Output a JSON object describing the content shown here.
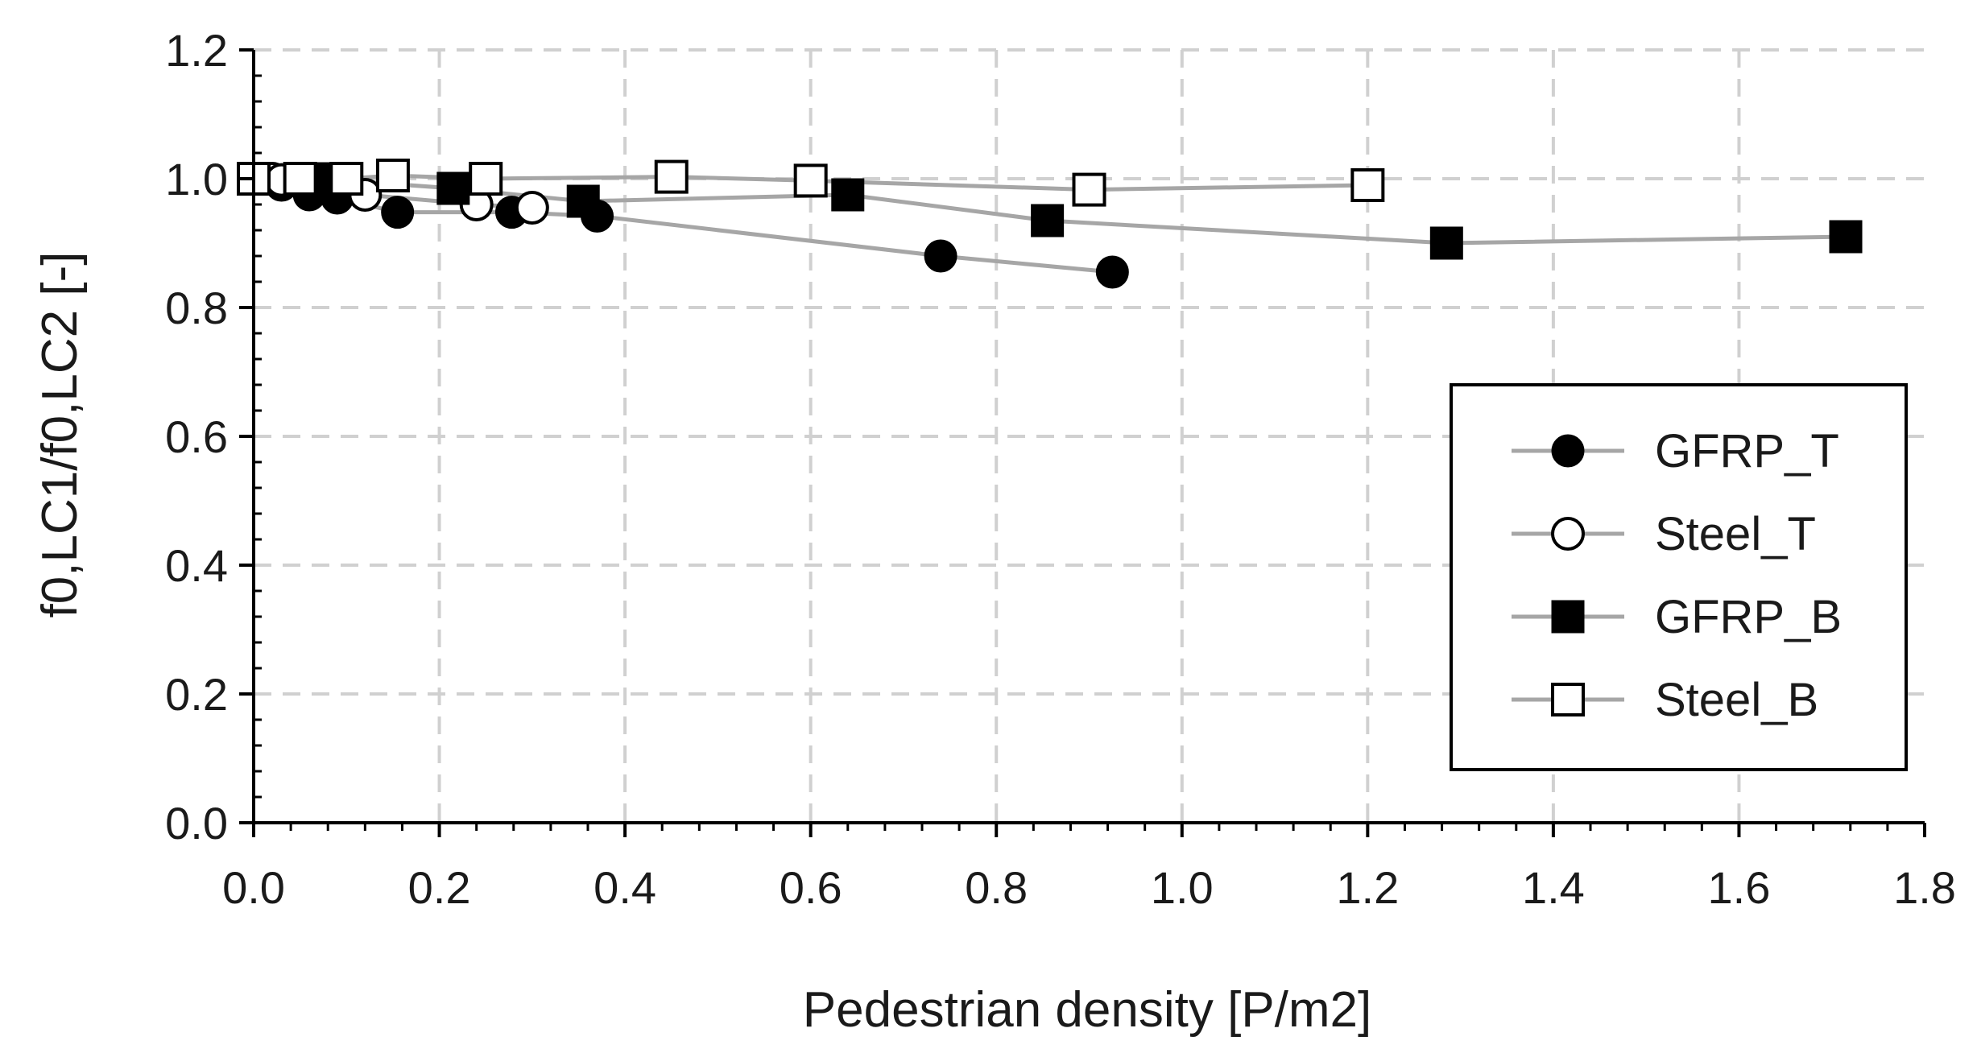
{
  "chart_data": {
    "type": "scatter",
    "title": "",
    "xlabel": "Pedestrian density [P/m2]",
    "ylabel": "f0,LC1/f0,LC2 [-]",
    "xlim": [
      0,
      1.8
    ],
    "ylim": [
      0,
      1.2
    ],
    "xticks": [
      "0.0",
      "0.2",
      "0.4",
      "0.6",
      "0.8",
      "1.0",
      "1.2",
      "1.4",
      "1.6",
      "1.8"
    ],
    "yticks": [
      "0.0",
      "0.2",
      "0.4",
      "0.6",
      "0.8",
      "1.0",
      "1.2"
    ],
    "grid": true,
    "legend_position": "lower-right",
    "series": [
      {
        "name": "GFRP_T",
        "marker": "filled-circle",
        "line_color": "#a6a6a6",
        "points": [
          {
            "x": 0.0,
            "y": 1.0
          },
          {
            "x": 0.03,
            "y": 0.99
          },
          {
            "x": 0.06,
            "y": 0.975
          },
          {
            "x": 0.09,
            "y": 0.97
          },
          {
            "x": 0.155,
            "y": 0.948
          },
          {
            "x": 0.278,
            "y": 0.948
          },
          {
            "x": 0.37,
            "y": 0.942
          },
          {
            "x": 0.74,
            "y": 0.88
          },
          {
            "x": 0.925,
            "y": 0.855
          }
        ]
      },
      {
        "name": "Steel_T",
        "marker": "open-circle",
        "line_color": "#a6a6a6",
        "points": [
          {
            "x": 0.0,
            "y": 1.0
          },
          {
            "x": 0.01,
            "y": 1.0
          },
          {
            "x": 0.02,
            "y": 1.0
          },
          {
            "x": 0.03,
            "y": 0.998
          },
          {
            "x": 0.12,
            "y": 0.975
          },
          {
            "x": 0.24,
            "y": 0.96
          },
          {
            "x": 0.3,
            "y": 0.955
          }
        ]
      },
      {
        "name": "GFRP_B",
        "marker": "filled-square",
        "line_color": "#a6a6a6",
        "points": [
          {
            "x": 0.0,
            "y": 1.0
          },
          {
            "x": 0.07,
            "y": 1.0
          },
          {
            "x": 0.215,
            "y": 0.985
          },
          {
            "x": 0.355,
            "y": 0.965
          },
          {
            "x": 0.64,
            "y": 0.975
          },
          {
            "x": 0.855,
            "y": 0.935
          },
          {
            "x": 1.285,
            "y": 0.9
          },
          {
            "x": 1.715,
            "y": 0.91
          }
        ]
      },
      {
        "name": "Steel_B",
        "marker": "open-square",
        "line_color": "#a6a6a6",
        "points": [
          {
            "x": 0.0,
            "y": 1.0
          },
          {
            "x": 0.05,
            "y": 1.0
          },
          {
            "x": 0.1,
            "y": 1.0
          },
          {
            "x": 0.15,
            "y": 1.005
          },
          {
            "x": 0.25,
            "y": 1.0
          },
          {
            "x": 0.45,
            "y": 1.003
          },
          {
            "x": 0.6,
            "y": 0.997
          },
          {
            "x": 0.9,
            "y": 0.983
          },
          {
            "x": 1.2,
            "y": 0.99
          }
        ]
      }
    ]
  },
  "colors": {
    "marker": "#000000",
    "line": "#a6a6a6",
    "grid": "#d0d0d0",
    "axis": "#000000"
  }
}
